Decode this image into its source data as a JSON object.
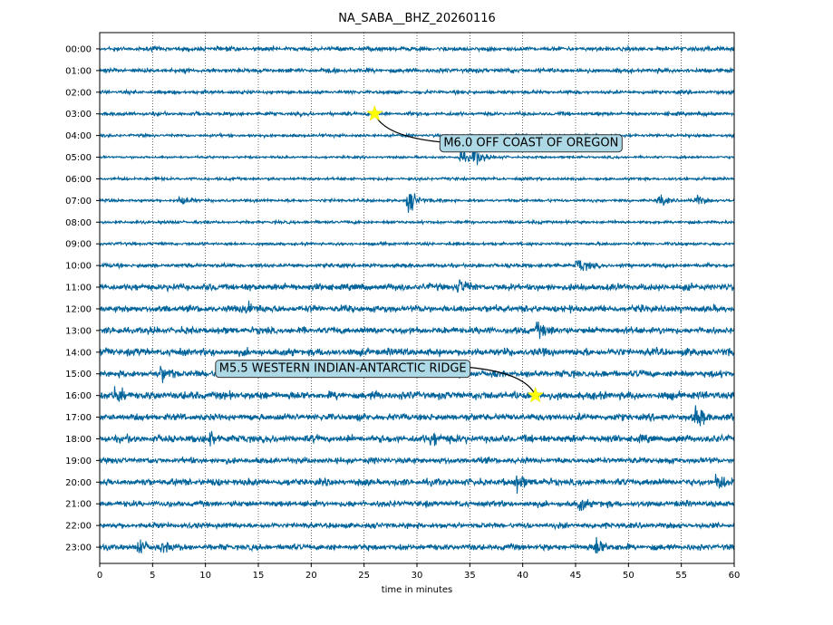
{
  "chart_data": {
    "type": "line",
    "title": "NA_SABA__BHZ_20260116",
    "xlabel": "time in minutes",
    "ylabel": "",
    "xlim": [
      0,
      60
    ],
    "x_ticks": [
      0,
      5,
      10,
      15,
      20,
      25,
      30,
      35,
      40,
      45,
      50,
      55,
      60
    ],
    "grid": "vertical dotted",
    "trace_color": "#00639a",
    "rows": [
      {
        "label": "00:00",
        "amplitude": 0.22
      },
      {
        "label": "01:00",
        "amplitude": 0.22
      },
      {
        "label": "02:00",
        "amplitude": 0.18
      },
      {
        "label": "03:00",
        "amplitude": 0.18
      },
      {
        "label": "04:00",
        "amplitude": 0.15
      },
      {
        "label": "05:00",
        "amplitude": 0.12
      },
      {
        "label": "06:00",
        "amplitude": 0.15
      },
      {
        "label": "07:00",
        "amplitude": 0.15
      },
      {
        "label": "08:00",
        "amplitude": 0.15
      },
      {
        "label": "09:00",
        "amplitude": 0.15
      },
      {
        "label": "10:00",
        "amplitude": 0.2
      },
      {
        "label": "11:00",
        "amplitude": 0.35
      },
      {
        "label": "12:00",
        "amplitude": 0.35
      },
      {
        "label": "13:00",
        "amplitude": 0.35
      },
      {
        "label": "14:00",
        "amplitude": 0.38
      },
      {
        "label": "15:00",
        "amplitude": 0.35
      },
      {
        "label": "16:00",
        "amplitude": 0.4
      },
      {
        "label": "17:00",
        "amplitude": 0.35
      },
      {
        "label": "18:00",
        "amplitude": 0.38
      },
      {
        "label": "19:00",
        "amplitude": 0.3
      },
      {
        "label": "20:00",
        "amplitude": 0.35
      },
      {
        "label": "21:00",
        "amplitude": 0.3
      },
      {
        "label": "22:00",
        "amplitude": 0.28
      },
      {
        "label": "23:00",
        "amplitude": 0.3
      }
    ],
    "bursts": [
      {
        "row": 5,
        "minute": 35.5,
        "strength": 1.3
      },
      {
        "row": 5,
        "minute": 34.2,
        "strength": 0.8
      },
      {
        "row": 7,
        "minute": 29.3,
        "strength": 1.4
      },
      {
        "row": 7,
        "minute": 7.8,
        "strength": 0.5
      },
      {
        "row": 7,
        "minute": 53,
        "strength": 0.7
      },
      {
        "row": 7,
        "minute": 56.5,
        "strength": 0.6
      },
      {
        "row": 10,
        "minute": 45.3,
        "strength": 0.9
      },
      {
        "row": 11,
        "minute": 34,
        "strength": 0.8
      },
      {
        "row": 12,
        "minute": 14,
        "strength": 0.9
      },
      {
        "row": 13,
        "minute": 41.5,
        "strength": 0.9
      },
      {
        "row": 15,
        "minute": 6,
        "strength": 0.8
      },
      {
        "row": 16,
        "minute": 1.5,
        "strength": 0.8
      },
      {
        "row": 17,
        "minute": 56.5,
        "strength": 1.3
      },
      {
        "row": 18,
        "minute": 10.5,
        "strength": 0.8
      },
      {
        "row": 18,
        "minute": 31.5,
        "strength": 0.8
      },
      {
        "row": 20,
        "minute": 39.5,
        "strength": 1.0
      },
      {
        "row": 20,
        "minute": 58.5,
        "strength": 0.9
      },
      {
        "row": 21,
        "minute": 45.5,
        "strength": 0.8
      },
      {
        "row": 23,
        "minute": 47,
        "strength": 1.3
      },
      {
        "row": 23,
        "minute": 3.8,
        "strength": 0.7
      },
      {
        "row": 23,
        "minute": 6,
        "strength": 0.6
      }
    ],
    "events": [
      {
        "label": "M6.0 OFF COAST OF OREGON",
        "row": 3,
        "minute": 26
      },
      {
        "label": "M5.5 WESTERN INDIAN-ANTARCTIC RIDGE",
        "row": 16,
        "minute": 41.2
      }
    ],
    "marker_color": "#ffff00",
    "annotation_box_color": "#add8e6"
  }
}
